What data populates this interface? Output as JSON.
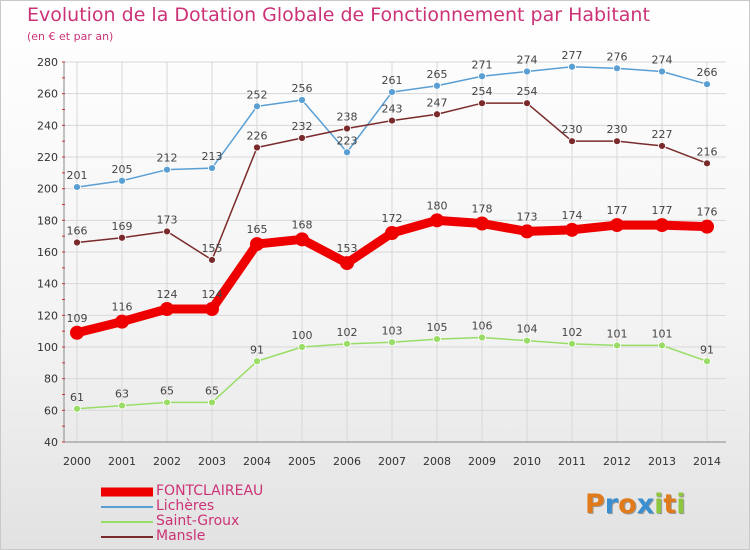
{
  "title": "Evolution de la Dotation Globale de Fonctionnement par Habitant",
  "subtitle": "(en € et par an)",
  "chart_data": {
    "type": "line",
    "title": "Evolution de la Dotation Globale de Fonctionnement par Habitant",
    "subtitle": "(en € et par an)",
    "xlabel": "",
    "ylabel": "",
    "ylim": [
      40,
      280
    ],
    "yticks": [
      40,
      60,
      80,
      100,
      120,
      140,
      160,
      180,
      200,
      220,
      240,
      260,
      280
    ],
    "grid": true,
    "x": [
      2000,
      2001,
      2002,
      2003,
      2004,
      2005,
      2006,
      2007,
      2008,
      2009,
      2010,
      2011,
      2012,
      2013,
      2014
    ],
    "series": [
      {
        "name": "FONTCLAIREAU",
        "color": "#ee0000",
        "emphasis": true,
        "values": [
          109,
          116,
          124,
          124,
          165,
          168,
          153,
          172,
          180,
          178,
          173,
          174,
          177,
          177,
          176
        ]
      },
      {
        "name": "Lichères",
        "color": "#5a9fd4",
        "values": [
          201,
          205,
          212,
          213,
          252,
          256,
          223,
          261,
          265,
          271,
          274,
          277,
          276,
          274,
          266
        ]
      },
      {
        "name": "Saint-Groux",
        "color": "#99dd66",
        "values": [
          61,
          63,
          65,
          65,
          91,
          100,
          102,
          103,
          105,
          106,
          104,
          102,
          101,
          101,
          91
        ]
      },
      {
        "name": "Mansle",
        "color": "#7a2a2a",
        "values": [
          166,
          169,
          173,
          155,
          226,
          232,
          238,
          243,
          247,
          254,
          254,
          230,
          230,
          227,
          216
        ]
      }
    ],
    "legend": "bottom-left"
  },
  "logo": {
    "letters": [
      "P",
      "r",
      "o",
      "x",
      "i",
      "t",
      "i"
    ],
    "colors": [
      "#e07a1a",
      "#3a8fd0",
      "#e07a1a",
      "#3a8fd0",
      "#8fc63f",
      "#e07a1a",
      "#8fc63f"
    ]
  }
}
